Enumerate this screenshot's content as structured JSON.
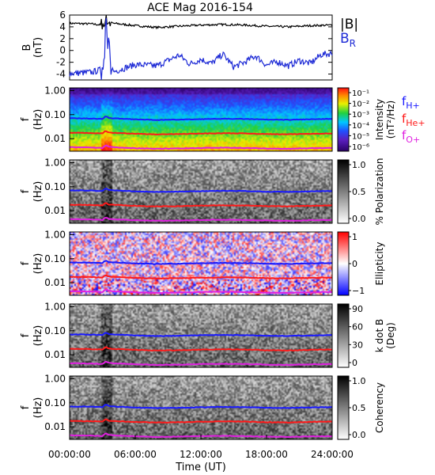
{
  "figure": {
    "title": "ACE Mag 2016-154",
    "xlabel": "Time (UT)",
    "xticks": [
      "00:00:00",
      "06:00:00",
      "12:00:00",
      "18:00:00",
      "24:00:00"
    ],
    "freq_ticks": [
      "1.00",
      "0.10",
      "0.01"
    ],
    "freq_label_1": "f",
    "freq_label_2": "(Hz)"
  },
  "legend": {
    "B_total": "|B|",
    "B_R": "B",
    "B_R_sub": "R",
    "f_H": "f",
    "f_H_sub": "H+",
    "f_He": "f",
    "f_He_sub": "He+",
    "f_O": "f",
    "f_O_sub": "O+"
  },
  "colors": {
    "B_total": "#000000",
    "B_R": "#1e2bd6",
    "f_H": "#1a1aff",
    "f_He": "#ff1a1a",
    "f_O": "#e020e0"
  },
  "chart_data": [
    {
      "type": "line",
      "panel": "magnetic-field",
      "ylabel_1": "B",
      "ylabel_2": "(nT)",
      "yticks": [
        "6",
        "4",
        "2",
        "0",
        "-2",
        "-4"
      ],
      "ylim": [
        -5,
        6
      ],
      "xlim_hours": [
        0,
        24
      ],
      "series": [
        {
          "name": "|B|",
          "x": [
            0,
            2,
            3,
            3.3,
            3.6,
            4,
            6,
            8,
            10,
            12,
            14,
            16,
            18,
            20,
            22,
            24
          ],
          "values": [
            4.6,
            4.5,
            4.3,
            5.6,
            4.8,
            4.6,
            4.2,
            3.9,
            4.1,
            4.3,
            4.4,
            4.3,
            4.1,
            4.0,
            4.2,
            4.3
          ]
        },
        {
          "name": "B_R",
          "x": [
            0,
            2,
            3,
            3.3,
            3.6,
            4,
            5,
            6,
            8,
            10,
            11,
            12,
            13,
            14,
            15,
            16,
            17,
            18,
            19,
            20,
            21,
            22,
            23,
            24
          ],
          "values": [
            -3.9,
            -3.7,
            -3.2,
            4.6,
            -1.5,
            -3.6,
            -3.0,
            -2.4,
            -2.6,
            -0.8,
            -2.3,
            -1.5,
            -2.2,
            -0.6,
            -2.8,
            -2.0,
            -0.9,
            -2.5,
            -1.9,
            -2.6,
            -1.7,
            -2.2,
            -0.7,
            -0.5
          ]
        }
      ]
    },
    {
      "type": "heatmap",
      "panel": "intensity",
      "ylim_hz": [
        0.003,
        1.3
      ],
      "colorbar": {
        "label_1": "Intensity",
        "label_2": "(nT²/Hz)",
        "ticks": [
          "10⁻¹",
          "10⁻²",
          "10⁻³",
          "10⁻⁴",
          "10⁻⁵",
          "10⁻⁶"
        ],
        "scale": "log"
      }
    },
    {
      "type": "heatmap",
      "panel": "polarization",
      "ylim_hz": [
        0.003,
        1.3
      ],
      "colorbar": {
        "label_1": "% Polarization",
        "label_2": "",
        "ticks": [
          "1.0",
          "0.5",
          "0.0"
        ]
      }
    },
    {
      "type": "heatmap",
      "panel": "ellipticity",
      "ylim_hz": [
        0.003,
        1.3
      ],
      "colorbar": {
        "label_1": "Ellipticity",
        "label_2": "",
        "ticks": [
          "1",
          "0",
          "−1"
        ]
      }
    },
    {
      "type": "heatmap",
      "panel": "wave-normal-angle",
      "ylim_hz": [
        0.003,
        1.3
      ],
      "colorbar": {
        "label_1": "k dot B",
        "label_2": "(Deg)",
        "ticks": [
          "90",
          "60",
          "30",
          "0"
        ]
      }
    },
    {
      "type": "heatmap",
      "panel": "coherency",
      "ylim_hz": [
        0.003,
        1.3
      ],
      "colorbar": {
        "label_1": "Coherency",
        "label_2": "",
        "ticks": [
          "1.0",
          "0.5",
          "0.0"
        ]
      }
    },
    {
      "type": "line",
      "panel": "gyrofrequency-overlays",
      "x": [
        0,
        2,
        3,
        3.3,
        3.6,
        4,
        6,
        8,
        10,
        12,
        14,
        16,
        18,
        20,
        22,
        24
      ],
      "series": [
        {
          "name": "fH+",
          "values": [
            0.07,
            0.069,
            0.066,
            0.085,
            0.073,
            0.07,
            0.064,
            0.06,
            0.062,
            0.065,
            0.067,
            0.066,
            0.062,
            0.061,
            0.064,
            0.066
          ]
        },
        {
          "name": "fHe+",
          "values": [
            0.0175,
            0.0172,
            0.0165,
            0.021,
            0.018,
            0.0175,
            0.016,
            0.015,
            0.0155,
            0.0163,
            0.0168,
            0.0165,
            0.0155,
            0.0152,
            0.016,
            0.0165
          ]
        },
        {
          "name": "fO+",
          "values": [
            0.0044,
            0.0043,
            0.0041,
            0.0053,
            0.0046,
            0.0044,
            0.004,
            0.0038,
            0.0039,
            0.0041,
            0.0042,
            0.0041,
            0.0039,
            0.0038,
            0.004,
            0.0041
          ]
        }
      ]
    }
  ]
}
